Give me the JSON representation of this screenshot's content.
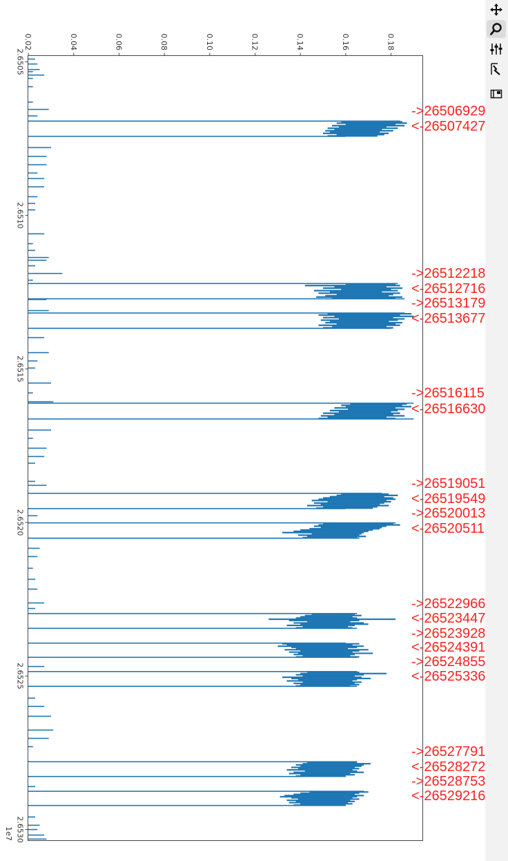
{
  "toolbar": {
    "items": [
      {
        "name": "pan",
        "icon": "move-arrows-icon",
        "active": false
      },
      {
        "name": "zoom",
        "icon": "magnifier-icon",
        "active": true
      },
      {
        "name": "configure-subplots",
        "icon": "sliders-icon",
        "active": false
      },
      {
        "name": "edit-axis",
        "icon": "axis-edit-icon",
        "active": false
      },
      {
        "name": "save",
        "icon": "save-figure-icon",
        "active": false
      }
    ]
  },
  "chart_data": {
    "type": "bar",
    "orientation": "horizontal bars, figure rotated 90°",
    "bar_color": "#1f77b4",
    "annotation_color": "#ff2020",
    "value_axis": {
      "ticks": [
        "0.02",
        "0.04",
        "0.06",
        "0.08",
        "0.10",
        "0.12",
        "0.14",
        "0.16",
        "0.18"
      ],
      "tick_values": [
        0.02,
        0.04,
        0.06,
        0.08,
        0.1,
        0.12,
        0.14,
        0.16,
        0.18
      ],
      "range": [
        0.0198,
        0.194
      ]
    },
    "position_axis": {
      "ticks": [
        "2.6505",
        "2.6510",
        "2.6515",
        "2.6520",
        "2.6525",
        "2.6530"
      ],
      "tick_values": [
        26505000,
        26510000,
        26515000,
        26520000,
        26525000,
        26530000
      ],
      "offset_label": "1e7",
      "range": [
        26504797,
        26530360
      ]
    },
    "annotations": [
      {
        "text": "->26506929",
        "y": 26506929
      },
      {
        "text": "<-26507427",
        "y": 26507427
      },
      {
        "text": "->26512218",
        "y": 26512218
      },
      {
        "text": "<-26512716",
        "y": 26512716
      },
      {
        "text": "->26513179",
        "y": 26513179
      },
      {
        "text": "<-26513677",
        "y": 26513677
      },
      {
        "text": "->26516115",
        "y": 26516115
      },
      {
        "text": "<-26516630",
        "y": 26516630
      },
      {
        "text": "->26519051",
        "y": 26519051
      },
      {
        "text": "<-26519549",
        "y": 26519549
      },
      {
        "text": "->26520013",
        "y": 26520013
      },
      {
        "text": "<-26520511",
        "y": 26520511
      },
      {
        "text": "->26522966",
        "y": 26522966
      },
      {
        "text": "<-26523447",
        "y": 26523447
      },
      {
        "text": "->26523928",
        "y": 26523928
      },
      {
        "text": "<-26524391",
        "y": 26524391
      },
      {
        "text": "->26524855",
        "y": 26524855
      },
      {
        "text": "<-26525336",
        "y": 26525336
      },
      {
        "text": "->26527791",
        "y": 26527791
      },
      {
        "text": "<-26528272",
        "y": 26528272
      },
      {
        "text": "->26528753",
        "y": 26528753
      },
      {
        "text": "<-26529216",
        "y": 26529216
      }
    ],
    "blocks": [
      {
        "start": 26506929,
        "end": 26507427,
        "edges": [
          0.184,
          0.16
        ],
        "bars": [
          [
            0.158,
            0.185
          ],
          [
            0.156,
            0.187
          ],
          [
            0.16,
            0.182
          ],
          [
            0.154,
            0.186
          ],
          [
            0.157,
            0.178
          ],
          [
            0.152,
            0.183
          ],
          [
            0.155,
            0.176
          ],
          [
            0.151,
            0.181
          ],
          [
            0.153,
            0.175
          ],
          [
            0.15,
            0.179
          ],
          [
            0.156,
            0.177
          ],
          [
            0.152,
            0.174
          ]
        ]
      },
      {
        "start": 26512218,
        "end": 26512716,
        "edges": [
          0.183,
          0.186
        ],
        "bars": [
          [
            0.16,
            0.182
          ],
          [
            0.142,
            0.184
          ],
          [
            0.155,
            0.178
          ],
          [
            0.15,
            0.185
          ],
          [
            0.158,
            0.18
          ],
          [
            0.146,
            0.183
          ],
          [
            0.153,
            0.176
          ],
          [
            0.148,
            0.184
          ],
          [
            0.156,
            0.181
          ],
          [
            0.151,
            0.179
          ],
          [
            0.147,
            0.185
          ],
          [
            0.154,
            0.182
          ]
        ]
      },
      {
        "start": 26513179,
        "end": 26513677,
        "edges": [
          0.186,
          0.18
        ],
        "bars": [
          [
            0.152,
            0.189
          ],
          [
            0.148,
            0.184
          ],
          [
            0.155,
            0.19
          ],
          [
            0.15,
            0.181
          ],
          [
            0.157,
            0.186
          ],
          [
            0.149,
            0.183
          ],
          [
            0.153,
            0.179
          ],
          [
            0.151,
            0.185
          ],
          [
            0.156,
            0.182
          ],
          [
            0.148,
            0.184
          ],
          [
            0.154,
            0.178
          ],
          [
            0.15,
            0.181
          ]
        ]
      },
      {
        "start": 26516115,
        "end": 26516630,
        "edges": [
          0.19,
          0.19
        ],
        "bars": [
          [
            0.162,
            0.187
          ],
          [
            0.158,
            0.185
          ],
          [
            0.16,
            0.189
          ],
          [
            0.155,
            0.182
          ],
          [
            0.161,
            0.186
          ],
          [
            0.153,
            0.183
          ],
          [
            0.157,
            0.18
          ],
          [
            0.15,
            0.184
          ],
          [
            0.155,
            0.181
          ],
          [
            0.149,
            0.186
          ],
          [
            0.152,
            0.178
          ],
          [
            0.148,
            0.182
          ]
        ]
      },
      {
        "start": 26519051,
        "end": 26519549,
        "edges": [
          0.176,
          0.16
        ],
        "bars": [
          [
            0.158,
            0.179
          ],
          [
            0.156,
            0.183
          ],
          [
            0.153,
            0.177
          ],
          [
            0.15,
            0.181
          ],
          [
            0.148,
            0.182
          ],
          [
            0.145,
            0.178
          ],
          [
            0.152,
            0.18
          ],
          [
            0.146,
            0.177
          ],
          [
            0.149,
            0.175
          ],
          [
            0.143,
            0.179
          ],
          [
            0.15,
            0.174
          ],
          [
            0.147,
            0.172
          ]
        ]
      },
      {
        "start": 26520013,
        "end": 26520511,
        "edges": [
          0.182,
          0.166
        ],
        "bars": [
          [
            0.15,
            0.181
          ],
          [
            0.148,
            0.184
          ],
          [
            0.146,
            0.178
          ],
          [
            0.149,
            0.176
          ],
          [
            0.144,
            0.175
          ],
          [
            0.14,
            0.172
          ],
          [
            0.137,
            0.17
          ],
          [
            0.132,
            0.168
          ],
          [
            0.145,
            0.167
          ],
          [
            0.139,
            0.166
          ],
          [
            0.143,
            0.169
          ],
          [
            0.141,
            0.165
          ]
        ]
      },
      {
        "start": 26522966,
        "end": 26523447,
        "edges": [
          0.165,
          0.165
        ],
        "bars": [
          [
            0.145,
            0.164
          ],
          [
            0.142,
            0.167
          ],
          [
            0.14,
            0.163
          ],
          [
            0.138,
            0.165
          ],
          [
            0.126,
            0.182
          ],
          [
            0.135,
            0.166
          ],
          [
            0.143,
            0.162
          ],
          [
            0.137,
            0.168
          ],
          [
            0.14,
            0.17
          ],
          [
            0.134,
            0.164
          ],
          [
            0.141,
            0.161
          ],
          [
            0.138,
            0.163
          ]
        ]
      },
      {
        "start": 26523928,
        "end": 26524391,
        "edges": [
          0.16,
          0.165
        ],
        "bars": [
          [
            0.132,
            0.166
          ],
          [
            0.134,
            0.163
          ],
          [
            0.13,
            0.168
          ],
          [
            0.136,
            0.165
          ],
          [
            0.138,
            0.161
          ],
          [
            0.133,
            0.17
          ],
          [
            0.14,
            0.166
          ],
          [
            0.135,
            0.163
          ],
          [
            0.139,
            0.172
          ],
          [
            0.137,
            0.164
          ],
          [
            0.141,
            0.162
          ],
          [
            0.138,
            0.166
          ]
        ]
      },
      {
        "start": 26524855,
        "end": 26525336,
        "edges": [
          0.165,
          0.165
        ],
        "bars": [
          [
            0.143,
            0.166
          ],
          [
            0.14,
            0.178
          ],
          [
            0.138,
            0.168
          ],
          [
            0.141,
            0.164
          ],
          [
            0.132,
            0.167
          ],
          [
            0.136,
            0.171
          ],
          [
            0.139,
            0.165
          ],
          [
            0.134,
            0.163
          ],
          [
            0.141,
            0.167
          ],
          [
            0.137,
            0.164
          ],
          [
            0.14,
            0.166
          ],
          [
            0.138,
            0.162
          ]
        ]
      },
      {
        "start": 26527791,
        "end": 26528272,
        "edges": [
          0.165,
          0.16
        ],
        "bars": [
          [
            0.143,
            0.165
          ],
          [
            0.141,
            0.171
          ],
          [
            0.138,
            0.168
          ],
          [
            0.14,
            0.167
          ],
          [
            0.136,
            0.164
          ],
          [
            0.139,
            0.166
          ],
          [
            0.134,
            0.163
          ],
          [
            0.142,
            0.165
          ],
          [
            0.137,
            0.168
          ],
          [
            0.135,
            0.162
          ],
          [
            0.14,
            0.164
          ],
          [
            0.138,
            0.16
          ]
        ]
      },
      {
        "start": 26528753,
        "end": 26529216,
        "edges": [
          0.168,
          0.16
        ],
        "bars": [
          [
            0.144,
            0.17
          ],
          [
            0.14,
            0.166
          ],
          [
            0.137,
            0.164
          ],
          [
            0.133,
            0.168
          ],
          [
            0.131,
            0.165
          ],
          [
            0.136,
            0.163
          ],
          [
            0.139,
            0.166
          ],
          [
            0.134,
            0.162
          ],
          [
            0.138,
            0.164
          ],
          [
            0.135,
            0.161
          ],
          [
            0.14,
            0.163
          ],
          [
            0.137,
            0.16
          ]
        ]
      }
    ],
    "sparse_bars": [
      [
        26504910,
        0.023
      ],
      [
        26505070,
        0.024
      ],
      [
        26505250,
        0.025
      ],
      [
        26505320,
        0.022
      ],
      [
        26505430,
        0.027
      ],
      [
        26505540,
        0.022
      ],
      [
        26505810,
        0.022
      ],
      [
        26506310,
        0.022
      ],
      [
        26506550,
        0.029
      ],
      [
        26506760,
        0.024
      ],
      [
        26507790,
        0.03
      ],
      [
        26508080,
        0.028
      ],
      [
        26508350,
        0.028
      ],
      [
        26508620,
        0.024
      ],
      [
        26508800,
        0.027
      ],
      [
        26509070,
        0.027
      ],
      [
        26509390,
        0.024
      ],
      [
        26509610,
        0.023
      ],
      [
        26509820,
        0.023
      ],
      [
        26510600,
        0.027
      ],
      [
        26510920,
        0.022
      ],
      [
        26511140,
        0.023
      ],
      [
        26511370,
        0.029
      ],
      [
        26511460,
        0.028
      ],
      [
        26511640,
        0.023
      ],
      [
        26511890,
        0.035
      ],
      [
        26512110,
        0.022
      ],
      [
        26512740,
        0.028
      ],
      [
        26513100,
        0.029
      ],
      [
        26513980,
        0.027
      ],
      [
        26514470,
        0.029
      ],
      [
        26514740,
        0.024
      ],
      [
        26514970,
        0.023
      ],
      [
        26515460,
        0.03
      ],
      [
        26515780,
        0.022
      ],
      [
        26516070,
        0.031
      ],
      [
        26516990,
        0.03
      ],
      [
        26517260,
        0.022
      ],
      [
        26517580,
        0.028
      ],
      [
        26517850,
        0.027
      ],
      [
        26518070,
        0.023
      ],
      [
        26518660,
        0.023
      ],
      [
        26518790,
        0.028
      ],
      [
        26519780,
        0.024
      ],
      [
        26520840,
        0.025
      ],
      [
        26521110,
        0.024
      ],
      [
        26521490,
        0.022
      ],
      [
        26521850,
        0.023
      ],
      [
        26522170,
        0.024
      ],
      [
        26522620,
        0.027
      ],
      [
        26522800,
        0.023
      ],
      [
        26524690,
        0.027
      ],
      [
        26525720,
        0.023
      ],
      [
        26525990,
        0.027
      ],
      [
        26526310,
        0.03
      ],
      [
        26526760,
        0.031
      ],
      [
        26527030,
        0.029
      ],
      [
        26527300,
        0.022
      ],
      [
        26528600,
        0.023
      ],
      [
        26529590,
        0.023
      ],
      [
        26529860,
        0.025
      ],
      [
        26530000,
        0.024
      ],
      [
        26530180,
        0.027
      ],
      [
        26530310,
        0.028
      ]
    ]
  }
}
